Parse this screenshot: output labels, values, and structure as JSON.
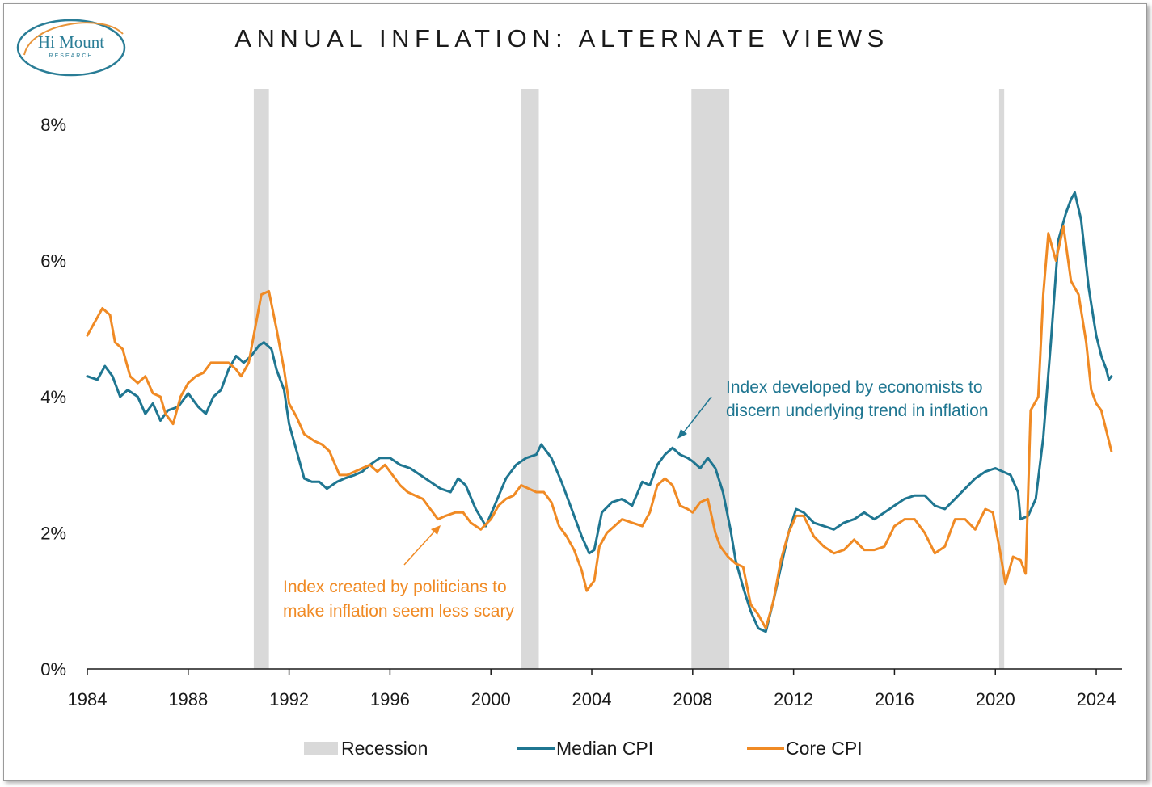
{
  "title": "ANNUAL INFLATION: ALTERNATE VIEWS",
  "logo": {
    "name": "Hi Mount",
    "sub": "RESEARCH"
  },
  "colors": {
    "median": "#1f7691",
    "core": "#f08a24",
    "recession": "#d9d9d9"
  },
  "annotations": {
    "median": [
      "Index developed by economists to",
      "discern underlying trend in inflation"
    ],
    "core": [
      "Index created by politicians to",
      "make inflation seem less scary"
    ]
  },
  "legend": {
    "recession": "Recession",
    "median": "Median CPI",
    "core": "Core CPI"
  },
  "chart_data": {
    "type": "line",
    "title": "ANNUAL INFLATION: ALTERNATE VIEWS",
    "xlabel": "",
    "ylabel": "",
    "xlim": [
      1984,
      2024.8
    ],
    "ylim": [
      0,
      8
    ],
    "x_ticks": [
      1984,
      1988,
      1992,
      1996,
      2000,
      2004,
      2008,
      2012,
      2016,
      2020,
      2024
    ],
    "y_ticks": [
      0,
      2,
      4,
      6,
      8
    ],
    "y_tick_labels": [
      "0%",
      "2%",
      "4%",
      "6%",
      "8%"
    ],
    "grid": false,
    "legend_position": "bottom",
    "recessions": [
      [
        1990.6,
        1991.2
      ],
      [
        2001.2,
        2001.9
      ],
      [
        2007.95,
        2009.45
      ],
      [
        2020.15,
        2020.35
      ]
    ],
    "series": [
      {
        "name": "Median CPI",
        "color": "#1f7691",
        "points": [
          [
            1984.0,
            4.3
          ],
          [
            1984.4,
            4.25
          ],
          [
            1984.7,
            4.45
          ],
          [
            1985.0,
            4.3
          ],
          [
            1985.3,
            4.0
          ],
          [
            1985.6,
            4.1
          ],
          [
            1986.0,
            4.0
          ],
          [
            1986.3,
            3.75
          ],
          [
            1986.6,
            3.9
          ],
          [
            1986.9,
            3.65
          ],
          [
            1987.2,
            3.8
          ],
          [
            1987.6,
            3.85
          ],
          [
            1988.0,
            4.05
          ],
          [
            1988.4,
            3.85
          ],
          [
            1988.7,
            3.75
          ],
          [
            1989.0,
            4.0
          ],
          [
            1989.3,
            4.1
          ],
          [
            1989.6,
            4.4
          ],
          [
            1989.9,
            4.6
          ],
          [
            1990.2,
            4.5
          ],
          [
            1990.5,
            4.6
          ],
          [
            1990.8,
            4.75
          ],
          [
            1991.0,
            4.8
          ],
          [
            1991.3,
            4.7
          ],
          [
            1991.5,
            4.4
          ],
          [
            1991.8,
            4.1
          ],
          [
            1992.0,
            3.6
          ],
          [
            1992.3,
            3.2
          ],
          [
            1992.6,
            2.8
          ],
          [
            1992.9,
            2.75
          ],
          [
            1993.2,
            2.75
          ],
          [
            1993.5,
            2.65
          ],
          [
            1993.9,
            2.75
          ],
          [
            1994.2,
            2.8
          ],
          [
            1994.6,
            2.85
          ],
          [
            1994.9,
            2.9
          ],
          [
            1995.2,
            3.0
          ],
          [
            1995.6,
            3.1
          ],
          [
            1996.0,
            3.1
          ],
          [
            1996.4,
            3.0
          ],
          [
            1996.8,
            2.95
          ],
          [
            1997.2,
            2.85
          ],
          [
            1997.6,
            2.75
          ],
          [
            1998.0,
            2.65
          ],
          [
            1998.4,
            2.6
          ],
          [
            1998.7,
            2.8
          ],
          [
            1999.0,
            2.7
          ],
          [
            1999.4,
            2.35
          ],
          [
            1999.8,
            2.1
          ],
          [
            2000.2,
            2.45
          ],
          [
            2000.6,
            2.8
          ],
          [
            2001.0,
            3.0
          ],
          [
            2001.4,
            3.1
          ],
          [
            2001.8,
            3.15
          ],
          [
            2002.0,
            3.3
          ],
          [
            2002.4,
            3.1
          ],
          [
            2002.8,
            2.75
          ],
          [
            2003.2,
            2.35
          ],
          [
            2003.6,
            1.95
          ],
          [
            2003.9,
            1.7
          ],
          [
            2004.1,
            1.75
          ],
          [
            2004.4,
            2.3
          ],
          [
            2004.8,
            2.45
          ],
          [
            2005.2,
            2.5
          ],
          [
            2005.6,
            2.4
          ],
          [
            2006.0,
            2.75
          ],
          [
            2006.3,
            2.7
          ],
          [
            2006.6,
            3.0
          ],
          [
            2006.9,
            3.15
          ],
          [
            2007.2,
            3.25
          ],
          [
            2007.5,
            3.15
          ],
          [
            2007.8,
            3.1
          ],
          [
            2008.0,
            3.05
          ],
          [
            2008.3,
            2.95
          ],
          [
            2008.6,
            3.1
          ],
          [
            2008.9,
            2.95
          ],
          [
            2009.2,
            2.6
          ],
          [
            2009.5,
            2.05
          ],
          [
            2009.7,
            1.6
          ],
          [
            2010.0,
            1.2
          ],
          [
            2010.3,
            0.85
          ],
          [
            2010.6,
            0.6
          ],
          [
            2010.9,
            0.55
          ],
          [
            2011.2,
            1.0
          ],
          [
            2011.5,
            1.5
          ],
          [
            2011.8,
            2.0
          ],
          [
            2012.1,
            2.35
          ],
          [
            2012.4,
            2.3
          ],
          [
            2012.8,
            2.15
          ],
          [
            2013.2,
            2.1
          ],
          [
            2013.6,
            2.05
          ],
          [
            2014.0,
            2.15
          ],
          [
            2014.4,
            2.2
          ],
          [
            2014.8,
            2.3
          ],
          [
            2015.2,
            2.2
          ],
          [
            2015.6,
            2.3
          ],
          [
            2016.0,
            2.4
          ],
          [
            2016.4,
            2.5
          ],
          [
            2016.8,
            2.55
          ],
          [
            2017.2,
            2.55
          ],
          [
            2017.6,
            2.4
          ],
          [
            2018.0,
            2.35
          ],
          [
            2018.4,
            2.5
          ],
          [
            2018.8,
            2.65
          ],
          [
            2019.2,
            2.8
          ],
          [
            2019.6,
            2.9
          ],
          [
            2020.0,
            2.95
          ],
          [
            2020.3,
            2.9
          ],
          [
            2020.6,
            2.85
          ],
          [
            2020.9,
            2.6
          ],
          [
            2021.0,
            2.2
          ],
          [
            2021.3,
            2.25
          ],
          [
            2021.6,
            2.5
          ],
          [
            2021.9,
            3.4
          ],
          [
            2022.2,
            4.8
          ],
          [
            2022.5,
            6.3
          ],
          [
            2022.8,
            6.7
          ],
          [
            2023.0,
            6.9
          ],
          [
            2023.15,
            7.0
          ],
          [
            2023.4,
            6.6
          ],
          [
            2023.7,
            5.6
          ],
          [
            2024.0,
            4.9
          ],
          [
            2024.2,
            4.6
          ],
          [
            2024.4,
            4.4
          ],
          [
            2024.5,
            4.25
          ],
          [
            2024.6,
            4.3
          ]
        ]
      },
      {
        "name": "Core CPI",
        "color": "#f08a24",
        "points": [
          [
            1984.0,
            4.9
          ],
          [
            1984.3,
            5.1
          ],
          [
            1984.6,
            5.3
          ],
          [
            1984.9,
            5.2
          ],
          [
            1985.1,
            4.8
          ],
          [
            1985.4,
            4.7
          ],
          [
            1985.7,
            4.3
          ],
          [
            1986.0,
            4.2
          ],
          [
            1986.3,
            4.3
          ],
          [
            1986.6,
            4.05
          ],
          [
            1986.9,
            4.0
          ],
          [
            1987.1,
            3.75
          ],
          [
            1987.4,
            3.6
          ],
          [
            1987.7,
            4.0
          ],
          [
            1988.0,
            4.2
          ],
          [
            1988.3,
            4.3
          ],
          [
            1988.6,
            4.35
          ],
          [
            1988.9,
            4.5
          ],
          [
            1989.2,
            4.5
          ],
          [
            1989.6,
            4.5
          ],
          [
            1989.9,
            4.4
          ],
          [
            1990.1,
            4.3
          ],
          [
            1990.4,
            4.5
          ],
          [
            1990.7,
            5.1
          ],
          [
            1990.9,
            5.5
          ],
          [
            1991.2,
            5.55
          ],
          [
            1991.5,
            5.0
          ],
          [
            1991.8,
            4.4
          ],
          [
            1992.0,
            3.9
          ],
          [
            1992.3,
            3.7
          ],
          [
            1992.6,
            3.45
          ],
          [
            1993.0,
            3.35
          ],
          [
            1993.3,
            3.3
          ],
          [
            1993.6,
            3.2
          ],
          [
            1994.0,
            2.85
          ],
          [
            1994.3,
            2.85
          ],
          [
            1994.6,
            2.9
          ],
          [
            1994.9,
            2.95
          ],
          [
            1995.2,
            3.0
          ],
          [
            1995.5,
            2.9
          ],
          [
            1995.8,
            3.0
          ],
          [
            1996.1,
            2.85
          ],
          [
            1996.4,
            2.7
          ],
          [
            1996.7,
            2.6
          ],
          [
            1997.0,
            2.55
          ],
          [
            1997.3,
            2.5
          ],
          [
            1997.6,
            2.35
          ],
          [
            1997.9,
            2.2
          ],
          [
            1998.2,
            2.25
          ],
          [
            1998.6,
            2.3
          ],
          [
            1998.9,
            2.3
          ],
          [
            1999.2,
            2.15
          ],
          [
            1999.6,
            2.05
          ],
          [
            2000.0,
            2.2
          ],
          [
            2000.3,
            2.4
          ],
          [
            2000.6,
            2.5
          ],
          [
            2000.9,
            2.55
          ],
          [
            2001.2,
            2.7
          ],
          [
            2001.5,
            2.65
          ],
          [
            2001.8,
            2.6
          ],
          [
            2002.1,
            2.6
          ],
          [
            2002.4,
            2.45
          ],
          [
            2002.7,
            2.1
          ],
          [
            2003.0,
            1.95
          ],
          [
            2003.3,
            1.75
          ],
          [
            2003.6,
            1.45
          ],
          [
            2003.8,
            1.15
          ],
          [
            2004.1,
            1.3
          ],
          [
            2004.3,
            1.8
          ],
          [
            2004.6,
            2.0
          ],
          [
            2004.9,
            2.1
          ],
          [
            2005.2,
            2.2
          ],
          [
            2005.6,
            2.15
          ],
          [
            2006.0,
            2.1
          ],
          [
            2006.3,
            2.3
          ],
          [
            2006.6,
            2.7
          ],
          [
            2006.9,
            2.8
          ],
          [
            2007.2,
            2.7
          ],
          [
            2007.5,
            2.4
          ],
          [
            2007.8,
            2.35
          ],
          [
            2008.0,
            2.3
          ],
          [
            2008.3,
            2.45
          ],
          [
            2008.6,
            2.5
          ],
          [
            2008.9,
            2.0
          ],
          [
            2009.1,
            1.8
          ],
          [
            2009.4,
            1.65
          ],
          [
            2009.7,
            1.55
          ],
          [
            2010.0,
            1.5
          ],
          [
            2010.3,
            0.95
          ],
          [
            2010.6,
            0.8
          ],
          [
            2010.9,
            0.6
          ],
          [
            2011.2,
            1.0
          ],
          [
            2011.5,
            1.6
          ],
          [
            2011.8,
            2.0
          ],
          [
            2012.1,
            2.25
          ],
          [
            2012.4,
            2.25
          ],
          [
            2012.8,
            1.95
          ],
          [
            2013.2,
            1.8
          ],
          [
            2013.6,
            1.7
          ],
          [
            2014.0,
            1.75
          ],
          [
            2014.4,
            1.9
          ],
          [
            2014.8,
            1.75
          ],
          [
            2015.2,
            1.75
          ],
          [
            2015.6,
            1.8
          ],
          [
            2016.0,
            2.1
          ],
          [
            2016.4,
            2.2
          ],
          [
            2016.8,
            2.2
          ],
          [
            2017.2,
            2.0
          ],
          [
            2017.6,
            1.7
          ],
          [
            2018.0,
            1.8
          ],
          [
            2018.4,
            2.2
          ],
          [
            2018.8,
            2.2
          ],
          [
            2019.2,
            2.05
          ],
          [
            2019.6,
            2.35
          ],
          [
            2019.9,
            2.3
          ],
          [
            2020.2,
            1.7
          ],
          [
            2020.4,
            1.25
          ],
          [
            2020.7,
            1.65
          ],
          [
            2021.0,
            1.6
          ],
          [
            2021.2,
            1.4
          ],
          [
            2021.4,
            3.8
          ],
          [
            2021.7,
            4.0
          ],
          [
            2021.9,
            5.5
          ],
          [
            2022.1,
            6.4
          ],
          [
            2022.4,
            6.0
          ],
          [
            2022.7,
            6.5
          ],
          [
            2023.0,
            5.7
          ],
          [
            2023.3,
            5.5
          ],
          [
            2023.6,
            4.8
          ],
          [
            2023.8,
            4.1
          ],
          [
            2024.0,
            3.9
          ],
          [
            2024.2,
            3.8
          ],
          [
            2024.4,
            3.5
          ],
          [
            2024.6,
            3.2
          ]
        ]
      }
    ]
  }
}
